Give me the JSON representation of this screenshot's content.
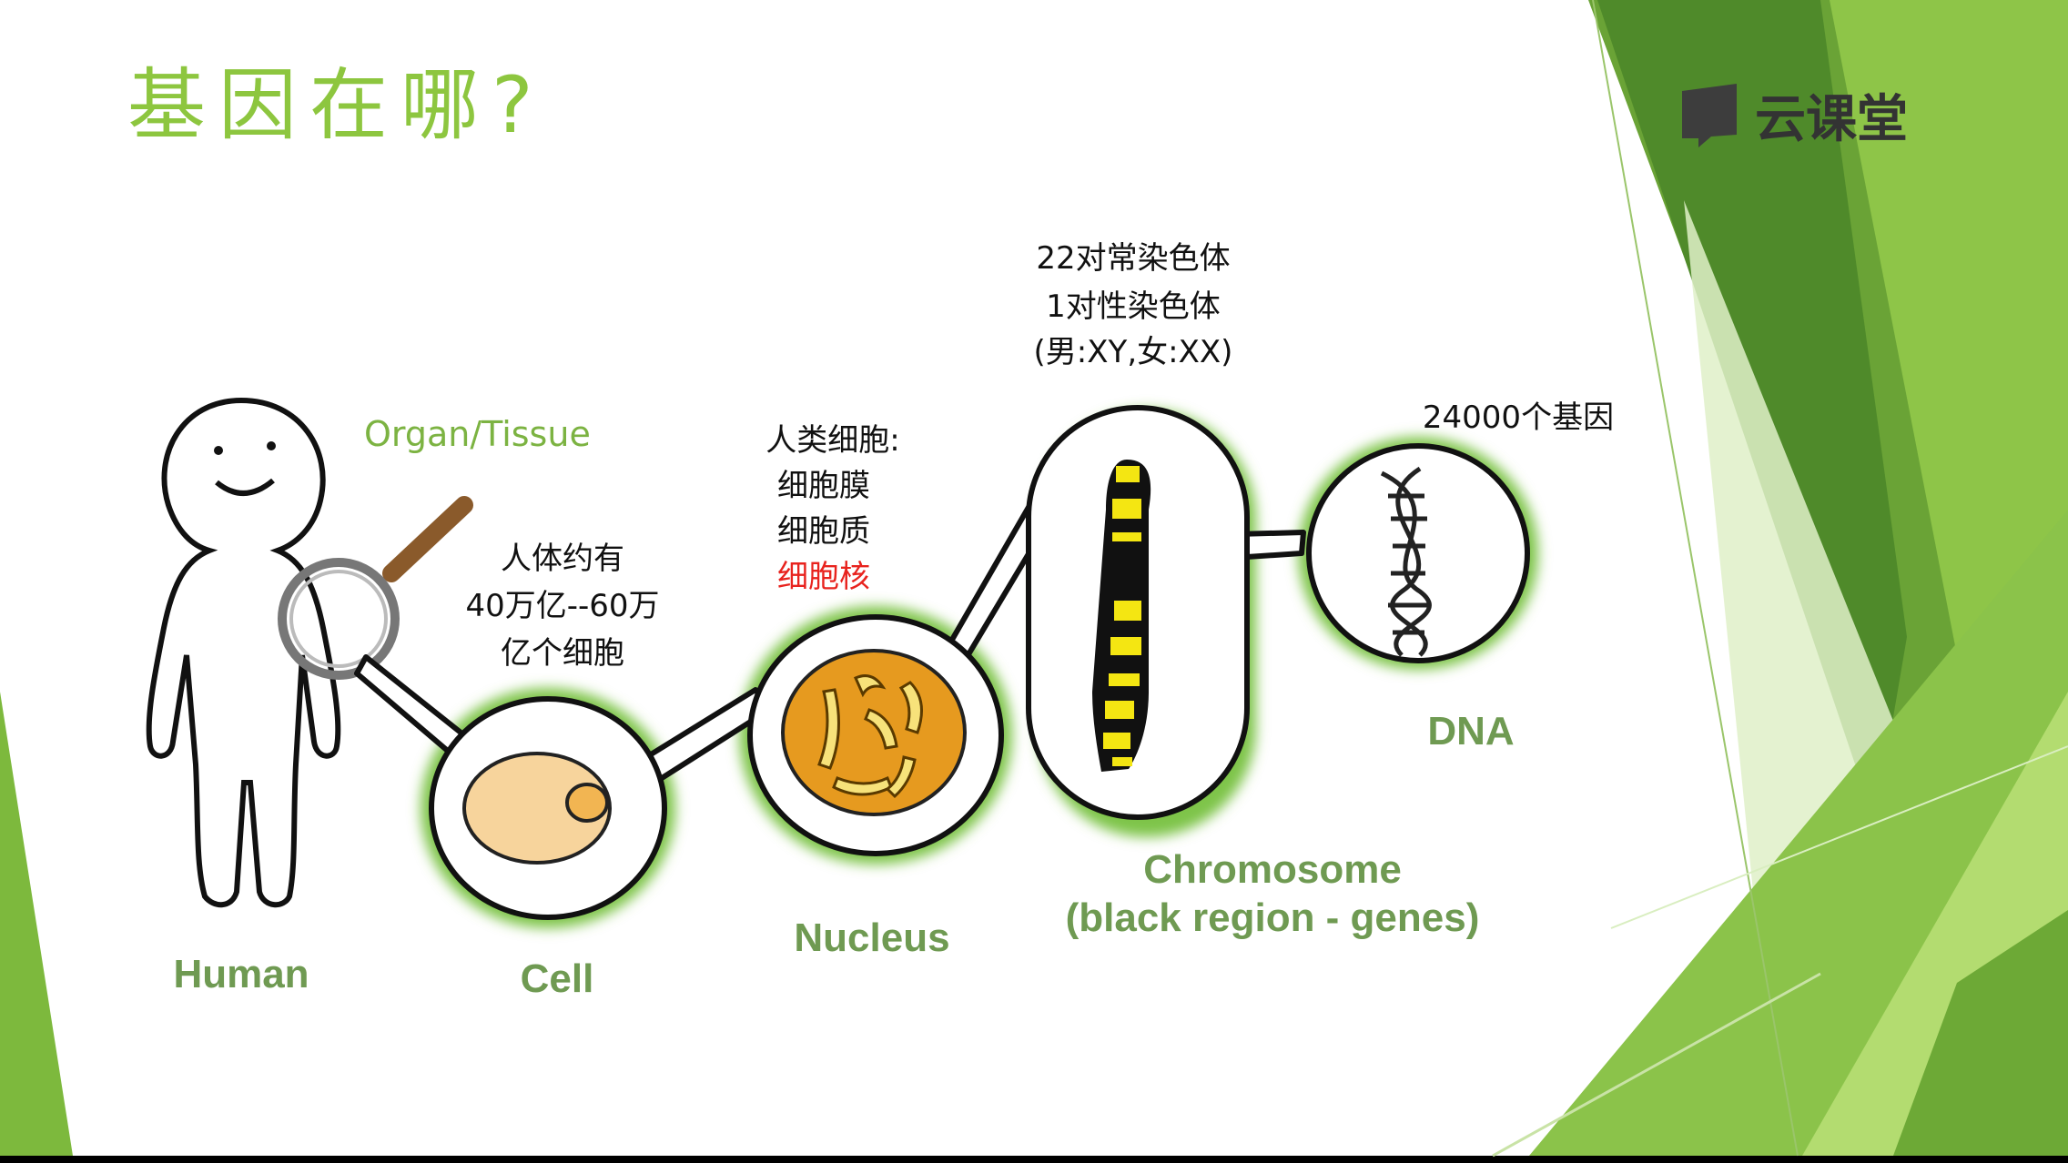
{
  "slide": {
    "title": "基因在哪?",
    "logo_text": "云课堂"
  },
  "annotations": {
    "organ_tissue": "Organ/Tissue",
    "body_cells": [
      "人体约有",
      "40万亿--60万",
      "亿个细胞"
    ],
    "cell_parts": [
      "人类细胞:",
      "细胞膜",
      "细胞质",
      "细胞核"
    ],
    "chromosomes": [
      "22对常染色体",
      "1对性染色体",
      "(男:XY,女:XX)"
    ],
    "genes": "24000个基因"
  },
  "labels": {
    "human": "Human",
    "cell": "Cell",
    "nucleus": "Nucleus",
    "chromosome_1": "Chromosome",
    "chromosome_2": "(black region - genes)",
    "dna": "DNA"
  },
  "colors": {
    "title_green": "#8dc63f",
    "label_gray_green": "#6f9a52",
    "highlight_red": "#e8231e",
    "deco_green_light": "#a5d35a",
    "deco_green_dark": "#5e9a2d",
    "cell_fill": "#f7d49c",
    "nucleus_fill": "#e69a1f",
    "chromosome_yellow": "#f4e612"
  },
  "icons": [
    "cloud-class-logo-icon",
    "magnifier-icon",
    "human-figure-icon",
    "dna-helix-icon"
  ]
}
